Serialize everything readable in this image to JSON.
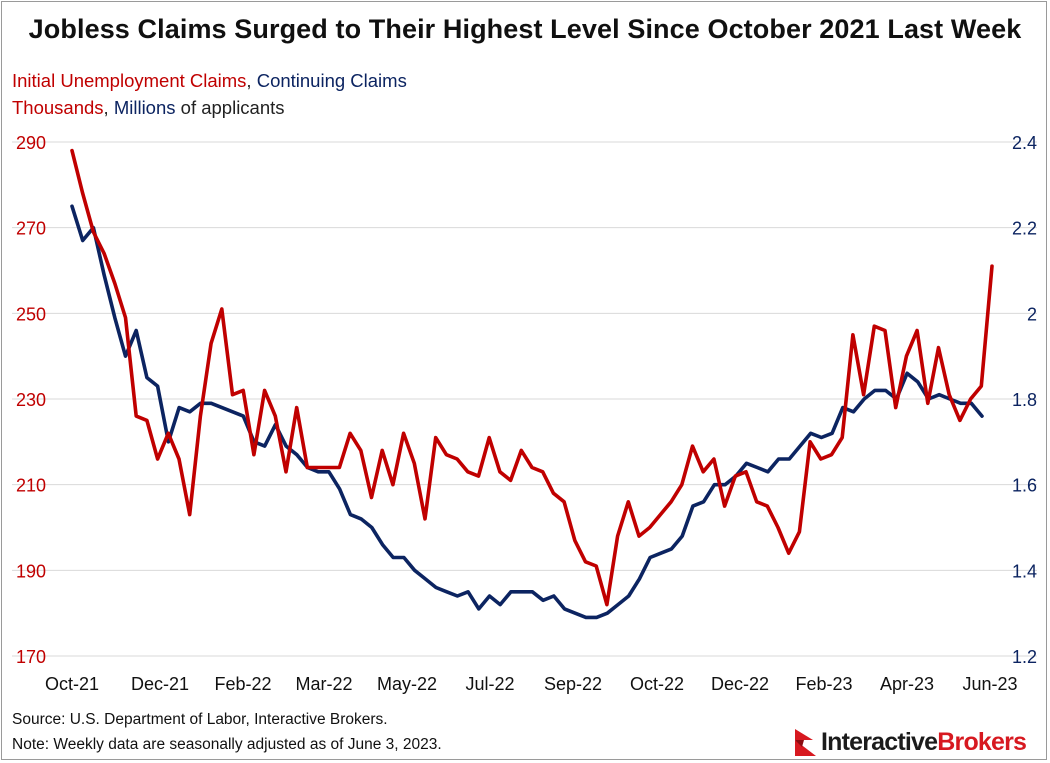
{
  "title": "Jobless Claims Surged to Their Highest Level Since October 2021 Last Week",
  "legend": {
    "line1_series_a": "Initial Unemployment Claims",
    "line1_sep": ",",
    "line1_series_b": "Continuing Claims",
    "line2_unit_a": "Thousands",
    "line2_sep": ",",
    "line2_unit_b": "Millions",
    "line2_suffix": " of applicants"
  },
  "footer": {
    "source": "Source: U.S. Department of Labor, Interactive Brokers.",
    "note": "Note: Weekly data are seasonally adjusted as of June 3, 2023."
  },
  "brand": {
    "part1": "Interactive",
    "part2": "Brokers",
    "logo_icon": "ib-flag-icon"
  },
  "colors": {
    "initial": "#c00000",
    "continuing": "#0c2461",
    "grid": "#d9d9d9"
  },
  "chart_data": {
    "type": "line",
    "x_tick_labels": [
      "Oct-21",
      "Dec-21",
      "Feb-22",
      "Mar-22",
      "May-22",
      "Jul-22",
      "Sep-22",
      "Oct-22",
      "Dec-22",
      "Feb-23",
      "Apr-23",
      "Jun-23"
    ],
    "y_left": {
      "min": 170,
      "max": 290,
      "ticks": [
        290,
        270,
        250,
        230,
        210,
        190,
        170
      ]
    },
    "y_right": {
      "min": 1.2,
      "max": 2.4,
      "ticks": [
        "2.4",
        "2.2",
        "2",
        "1.8",
        "1.6",
        "1.4",
        "1.2"
      ]
    },
    "grid": "horizontal",
    "series": [
      {
        "name": "Initial Unemployment Claims",
        "axis": "left",
        "values": [
          288,
          278,
          269,
          264,
          257,
          249,
          226,
          225,
          216,
          222,
          216,
          203,
          226,
          243,
          251,
          231,
          232,
          217,
          232,
          226,
          213,
          228,
          214,
          214,
          214,
          214,
          222,
          218,
          207,
          218,
          210,
          222,
          215,
          202,
          221,
          217,
          216,
          213,
          212,
          221,
          213,
          211,
          218,
          214,
          213,
          208,
          206,
          197,
          192,
          191,
          182,
          198,
          206,
          198,
          200,
          203,
          206,
          210,
          219,
          213,
          216,
          205,
          212,
          213,
          206,
          205,
          200,
          194,
          199,
          220,
          216,
          217,
          221,
          245,
          231,
          247,
          246,
          228,
          240,
          246,
          229,
          242,
          231,
          225,
          230,
          233,
          261
        ]
      },
      {
        "name": "Continuing Claims",
        "axis": "right",
        "values": [
          2.25,
          2.17,
          2.2,
          2.09,
          1.99,
          1.9,
          1.96,
          1.85,
          1.83,
          1.7,
          1.78,
          1.77,
          1.79,
          1.79,
          1.78,
          1.77,
          1.76,
          1.7,
          1.69,
          1.74,
          1.69,
          1.67,
          1.64,
          1.63,
          1.63,
          1.59,
          1.53,
          1.52,
          1.5,
          1.46,
          1.43,
          1.43,
          1.4,
          1.38,
          1.36,
          1.35,
          1.34,
          1.35,
          1.31,
          1.34,
          1.32,
          1.35,
          1.35,
          1.35,
          1.33,
          1.34,
          1.31,
          1.3,
          1.29,
          1.29,
          1.3,
          1.32,
          1.34,
          1.38,
          1.43,
          1.44,
          1.45,
          1.48,
          1.55,
          1.56,
          1.6,
          1.6,
          1.62,
          1.65,
          1.64,
          1.63,
          1.66,
          1.66,
          1.69,
          1.72,
          1.71,
          1.72,
          1.78,
          1.77,
          1.8,
          1.82,
          1.82,
          1.8,
          1.86,
          1.84,
          1.8,
          1.81,
          1.8,
          1.79,
          1.79,
          1.76
        ]
      }
    ]
  }
}
